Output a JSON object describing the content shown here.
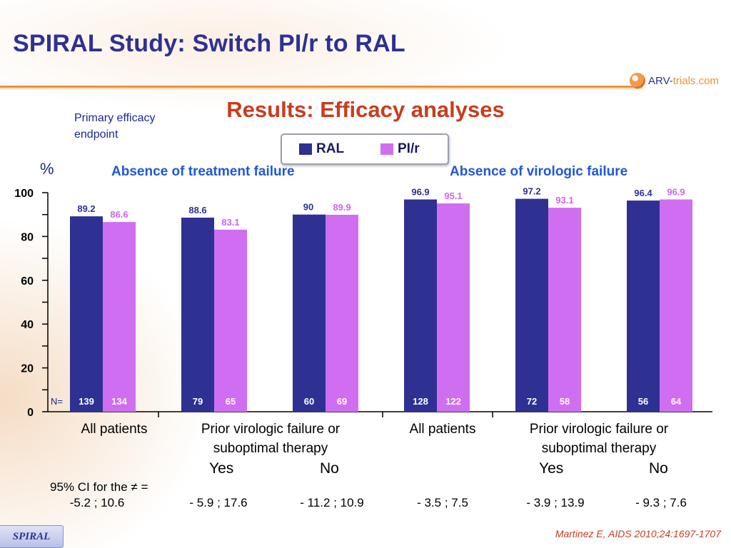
{
  "title": "SPIRAL Study: Switch PI/r to RAL",
  "logo": {
    "main": "ARV-",
    "accent": "trials",
    "suffix": ".com"
  },
  "subtitle": "Results: Efficacy analyses",
  "primary_note": "Primary efficacy endpoint",
  "legend": {
    "items": [
      {
        "label": "RAL",
        "color": "#2e3192"
      },
      {
        "label": "PI/r",
        "color": "#cf6ef0"
      }
    ]
  },
  "y_unit": "%",
  "group_headers": [
    "Absence of treatment failure",
    "Absence of virologic failure"
  ],
  "n_prefix": "N=",
  "categories": [
    "All patients",
    "Prior virologic failure or suboptimal therapy",
    "All patients",
    "Prior virologic failure or suboptimal therapy"
  ],
  "yes_no": [
    "Yes",
    "No",
    "Yes",
    "No"
  ],
  "ci_header": "95% CI for the ≠ =",
  "ci_values": [
    "-5.2 ; 10.6",
    "- 5.9 ; 17.6",
    "- 11.2 ; 10.9",
    "- 3.5 ; 7.5",
    "- 3.9 ; 13.9",
    "- 9.3 ; 7.6"
  ],
  "footer_tag": "SPIRAL",
  "citation": "Martinez E, AIDS 2010;24:1697-1707",
  "colors": {
    "ral": "#2e3192",
    "pir": "#cf6ef0",
    "title": "#2e3193",
    "subtitle": "#c83c1e",
    "group_header": "#1f58d6"
  },
  "chart_data": {
    "type": "bar",
    "ylabel": "%",
    "ylim": [
      0,
      100
    ],
    "yticks": [
      0,
      20,
      40,
      60,
      80,
      100
    ],
    "legend_position": "top-center",
    "grid": false,
    "categories": [
      "All patients",
      "Yes",
      "No",
      "All patients",
      "Yes",
      "No"
    ],
    "series": [
      {
        "name": "RAL",
        "values": [
          89.2,
          88.6,
          90,
          96.9,
          97.2,
          96.4
        ],
        "n": [
          139,
          79,
          60,
          128,
          72,
          56
        ]
      },
      {
        "name": "PI/r",
        "values": [
          86.6,
          83.1,
          89.9,
          95.1,
          93.1,
          96.9
        ],
        "n": [
          134,
          65,
          69,
          122,
          58,
          64
        ]
      }
    ]
  }
}
